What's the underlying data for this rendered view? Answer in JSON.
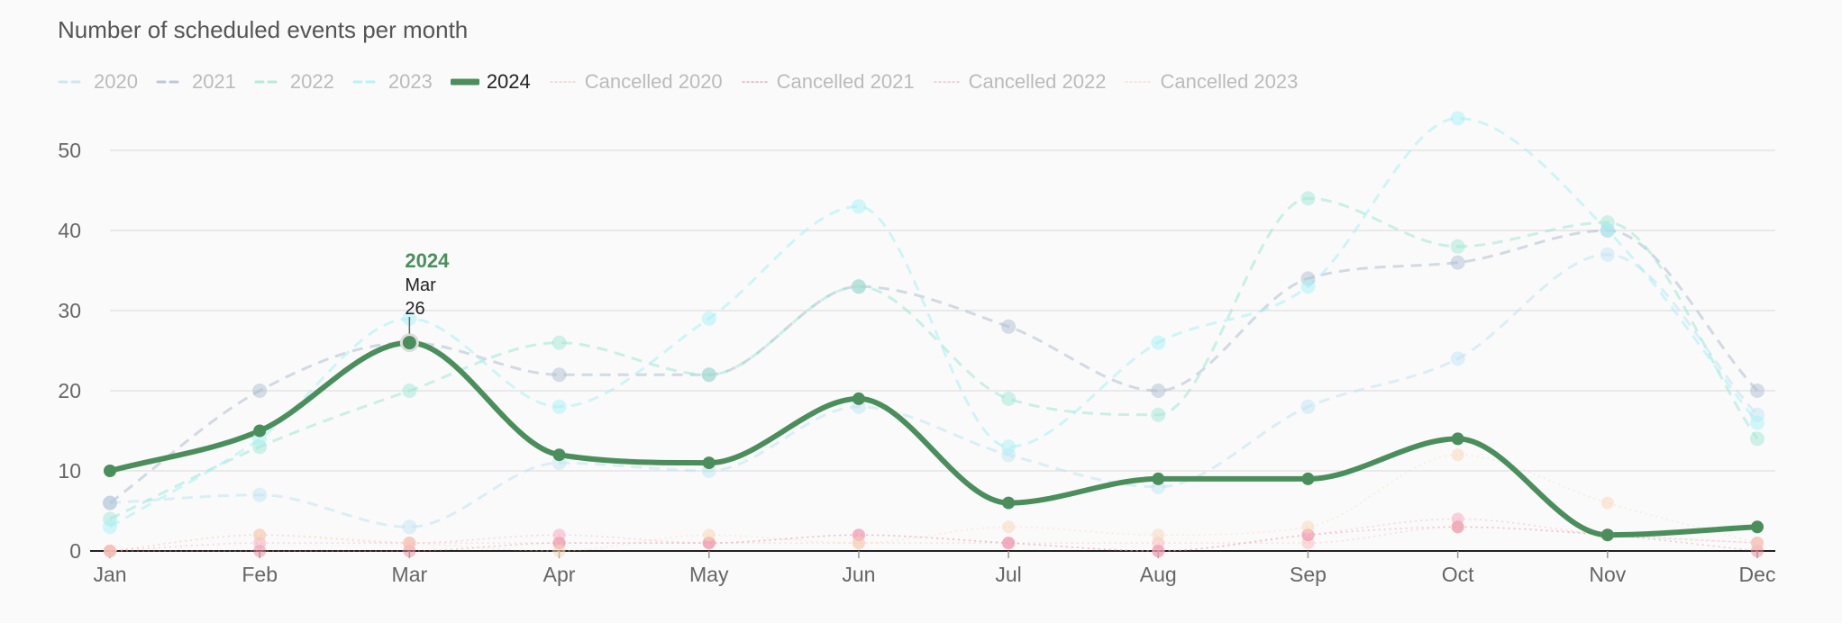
{
  "chart_data": {
    "type": "line",
    "title": "Number of scheduled events per month",
    "categories": [
      "Jan",
      "Feb",
      "Mar",
      "Apr",
      "May",
      "Jun",
      "Jul",
      "Aug",
      "Sep",
      "Oct",
      "Nov",
      "Dec"
    ],
    "ylim": [
      0,
      55
    ],
    "yticks": [
      0,
      10,
      20,
      30,
      40,
      50
    ],
    "grid": true,
    "legend_position": "top-left",
    "series": [
      {
        "name": "2020",
        "values": [
          6,
          7,
          3,
          11,
          10,
          18,
          12,
          8,
          18,
          24,
          37,
          17
        ],
        "color": "#bfe3f3",
        "style": "dashed",
        "opacity": 0.55,
        "visible": true
      },
      {
        "name": "2021",
        "values": [
          6,
          20,
          26,
          22,
          22,
          33,
          28,
          20,
          34,
          36,
          40,
          20
        ],
        "color": "#aebdd0",
        "style": "dashed",
        "opacity": 0.55,
        "visible": true
      },
      {
        "name": "2022",
        "values": [
          4,
          13,
          20,
          26,
          22,
          33,
          19,
          17,
          44,
          38,
          41,
          14
        ],
        "color": "#9fe8d6",
        "style": "dashed",
        "opacity": 0.55,
        "visible": true
      },
      {
        "name": "2023",
        "values": [
          3,
          14,
          29,
          18,
          29,
          43,
          13,
          26,
          33,
          54,
          40,
          16
        ],
        "color": "#a8f1f5",
        "style": "dashed",
        "opacity": 0.55,
        "visible": true
      },
      {
        "name": "2024",
        "values": [
          10,
          15,
          26,
          12,
          11,
          19,
          6,
          9,
          9,
          14,
          2,
          3
        ],
        "color": "#4a8f5b",
        "style": "solid",
        "opacity": 1,
        "visible": true,
        "highlight": true
      },
      {
        "name": "Cancelled 2020",
        "values": [
          0,
          2,
          1,
          1,
          1,
          1,
          1,
          1,
          1,
          3,
          2,
          1
        ],
        "color": "#f7b9b9",
        "style": "dotted",
        "opacity": 0.45,
        "visible": true
      },
      {
        "name": "Cancelled 2021",
        "values": [
          0,
          0,
          0,
          1,
          1,
          2,
          1,
          0,
          2,
          3,
          2,
          0
        ],
        "color": "#e88a9a",
        "style": "dotted",
        "opacity": 0.45,
        "visible": true
      },
      {
        "name": "Cancelled 2022",
        "values": [
          0,
          1,
          1,
          2,
          1,
          2,
          1,
          0,
          2,
          4,
          2,
          1
        ],
        "color": "#f5a5c0",
        "style": "dotted",
        "opacity": 0.45,
        "visible": true
      },
      {
        "name": "Cancelled 2023",
        "values": [
          0,
          2,
          1,
          0,
          2,
          1,
          3,
          2,
          3,
          12,
          6,
          1
        ],
        "color": "#f7d6b3",
        "style": "dotted",
        "opacity": 0.45,
        "visible": true
      }
    ],
    "tooltip": {
      "series": "2024",
      "category": "Mar",
      "value": "26"
    }
  }
}
